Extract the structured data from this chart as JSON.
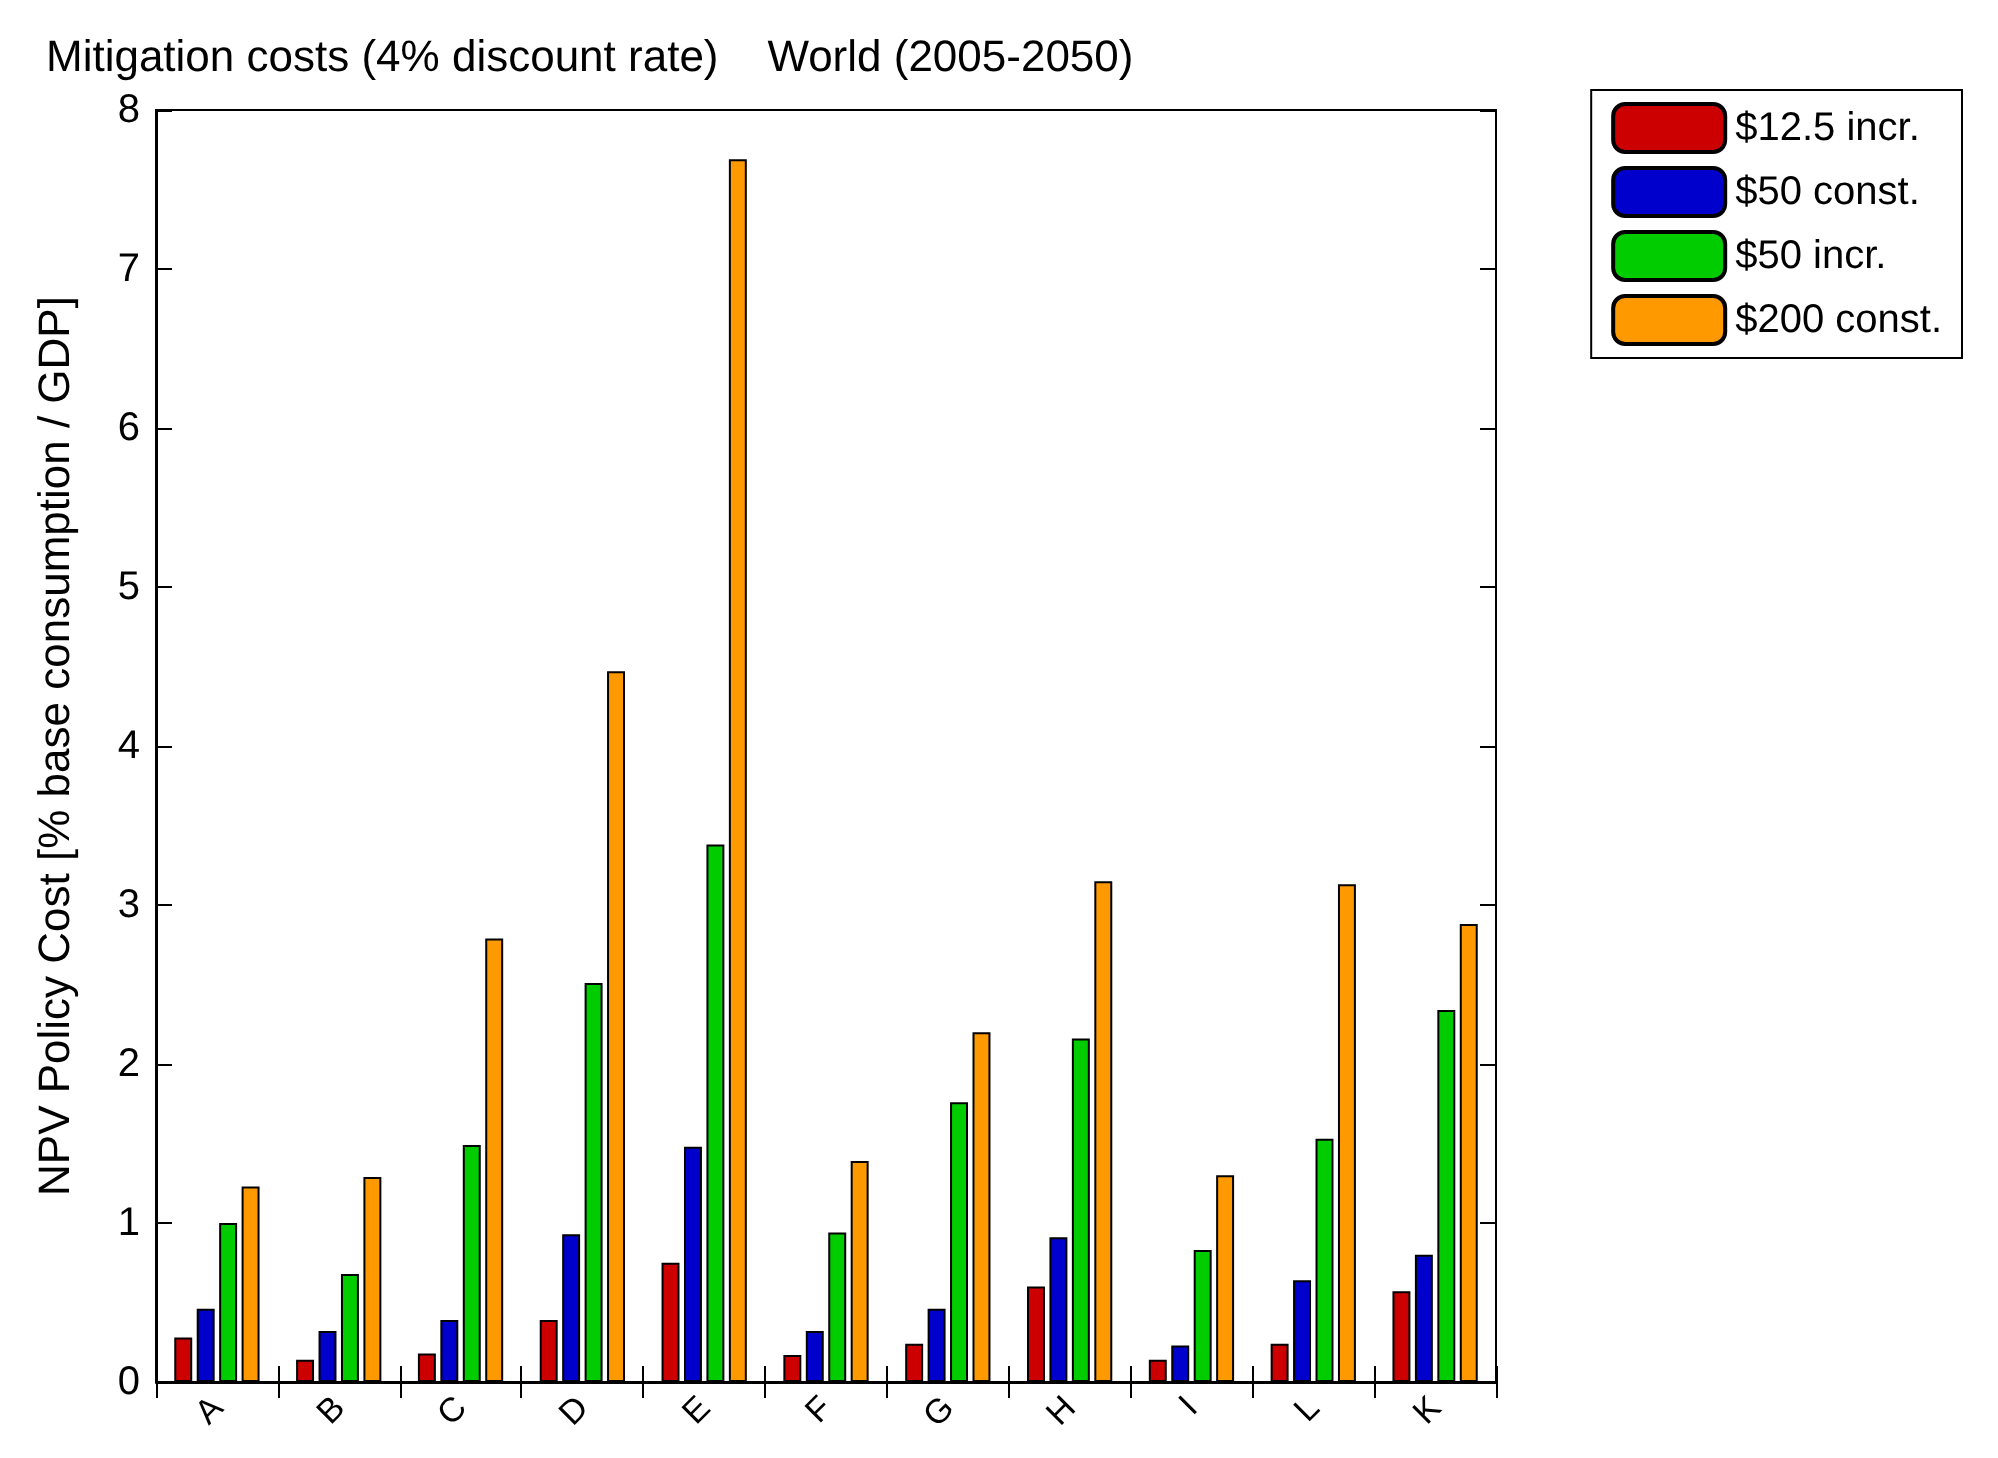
{
  "chart_data": {
    "type": "bar",
    "title": "Mitigation costs (4% discount rate)    World (2005-2050)",
    "ylabel": "NPV Policy Cost [% base consumption / GDP]",
    "categories": [
      "A",
      "B",
      "C",
      "D",
      "E",
      "F",
      "G",
      "H",
      "I",
      "L",
      "K"
    ],
    "series": [
      {
        "name": "$12.5 incr.",
        "color": "#cc0000",
        "values": [
          0.28,
          0.14,
          0.18,
          0.39,
          0.75,
          0.17,
          0.24,
          0.6,
          0.14,
          0.24,
          0.57
        ]
      },
      {
        "name": "$50 const.",
        "color": "#0000cc",
        "values": [
          0.46,
          0.32,
          0.39,
          0.93,
          1.48,
          0.32,
          0.46,
          0.91,
          0.23,
          0.64,
          0.8
        ]
      },
      {
        "name": "$50 incr.",
        "color": "#00cc00",
        "values": [
          1.0,
          0.68,
          1.49,
          2.51,
          3.38,
          0.94,
          1.76,
          2.16,
          0.83,
          1.53,
          2.34
        ]
      },
      {
        "name": "$200 const.",
        "color": "#ff9900",
        "values": [
          1.23,
          1.29,
          2.79,
          4.47,
          7.69,
          1.39,
          2.2,
          3.15,
          1.3,
          3.13,
          2.88
        ]
      }
    ],
    "ylim": [
      0,
      8
    ],
    "yticks": [
      0,
      1,
      2,
      3,
      4,
      5,
      6,
      7,
      8
    ],
    "grid": false,
    "legend": "top right"
  }
}
